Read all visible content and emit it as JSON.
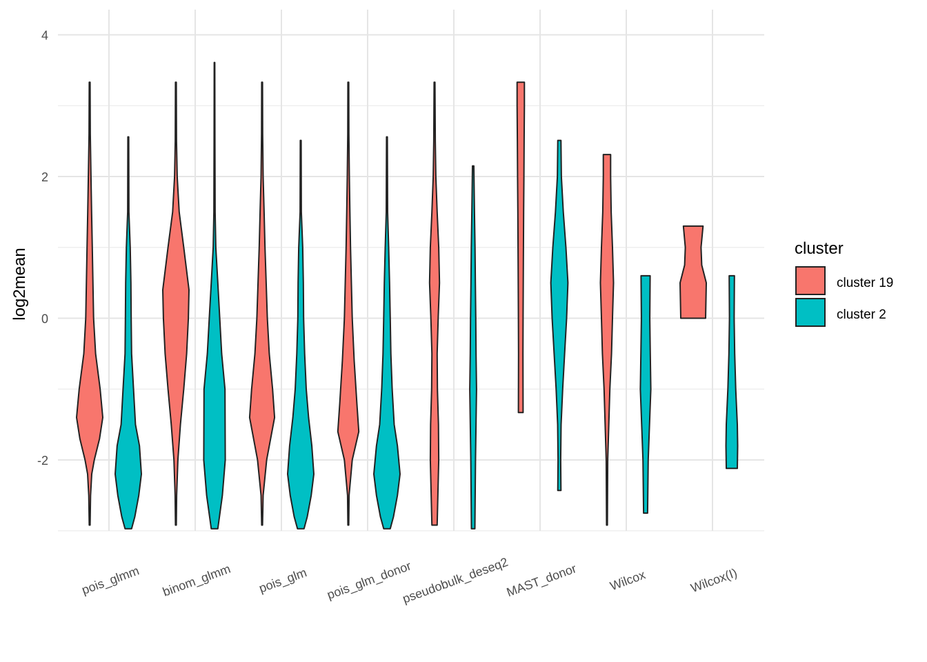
{
  "chart_data": {
    "type": "violin",
    "title": "",
    "xlabel": "",
    "ylabel": "log2mean",
    "ylim": [
      -3.0,
      4.3
    ],
    "y_ticks": [
      -2,
      0,
      2,
      4
    ],
    "y_tick_labels": [
      "-2",
      "0",
      "2",
      "4"
    ],
    "categories": [
      "pois_glmm",
      "binom_glmm",
      "pois_glm",
      "pois_glm_donor",
      "pseudobulk_deseq2",
      "MAST_donor",
      "Wilcox",
      "Wilcox(I)"
    ],
    "legend": {
      "title": "cluster",
      "position": "right",
      "entries": [
        {
          "label": "cluster 19",
          "color": "#F8766D"
        },
        {
          "label": "cluster 2",
          "color": "#00BFC4"
        }
      ]
    },
    "series": [
      {
        "name": "cluster 19",
        "color": "#F8766D",
        "violins": [
          {
            "category": "pois_glmm",
            "min": -2.92,
            "max": 3.33,
            "profile": [
              [
                -2.92,
                0.03
              ],
              [
                -2.5,
                0.07
              ],
              [
                -2.2,
                0.16
              ],
              [
                -2.0,
                0.35
              ],
              [
                -1.7,
                0.75
              ],
              [
                -1.4,
                1.0
              ],
              [
                -1.0,
                0.8
              ],
              [
                -0.5,
                0.45
              ],
              [
                0.0,
                0.3
              ],
              [
                1.0,
                0.2
              ],
              [
                1.5,
                0.15
              ],
              [
                2.0,
                0.1
              ],
              [
                2.6,
                0.05
              ],
              [
                3.33,
                0.03
              ]
            ]
          },
          {
            "category": "binom_glmm",
            "min": -2.92,
            "max": 3.33,
            "profile": [
              [
                -2.92,
                0.03
              ],
              [
                -2.5,
                0.06
              ],
              [
                -2.0,
                0.15
              ],
              [
                -1.5,
                0.35
              ],
              [
                -1.0,
                0.6
              ],
              [
                -0.5,
                0.82
              ],
              [
                0.0,
                0.95
              ],
              [
                0.4,
                1.0
              ],
              [
                1.0,
                0.6
              ],
              [
                1.5,
                0.25
              ],
              [
                2.0,
                0.1
              ],
              [
                2.5,
                0.05
              ],
              [
                3.33,
                0.03
              ]
            ]
          },
          {
            "category": "pois_glm",
            "min": -2.92,
            "max": 3.33,
            "profile": [
              [
                -2.92,
                0.03
              ],
              [
                -2.5,
                0.08
              ],
              [
                -2.0,
                0.35
              ],
              [
                -1.4,
                0.95
              ],
              [
                -1.0,
                0.8
              ],
              [
                -0.5,
                0.55
              ],
              [
                0.0,
                0.4
              ],
              [
                1.0,
                0.22
              ],
              [
                1.5,
                0.15
              ],
              [
                2.0,
                0.08
              ],
              [
                2.6,
                0.04
              ],
              [
                3.33,
                0.03
              ]
            ]
          },
          {
            "category": "pois_glm_donor",
            "min": -2.92,
            "max": 3.33,
            "profile": [
              [
                -2.92,
                0.03
              ],
              [
                -2.5,
                0.06
              ],
              [
                -2.0,
                0.3
              ],
              [
                -1.6,
                0.8
              ],
              [
                -1.2,
                0.65
              ],
              [
                -0.6,
                0.45
              ],
              [
                0.0,
                0.3
              ],
              [
                1.0,
                0.17
              ],
              [
                1.5,
                0.12
              ],
              [
                2.0,
                0.08
              ],
              [
                2.6,
                0.04
              ],
              [
                3.33,
                0.03
              ]
            ]
          },
          {
            "category": "pseudobulk_deseq2",
            "min": -2.92,
            "max": 3.33,
            "profile": [
              [
                -2.92,
                0.2
              ],
              [
                -2.0,
                0.32
              ],
              [
                -1.5,
                0.3
              ],
              [
                -1.0,
                0.22
              ],
              [
                -0.5,
                0.2
              ],
              [
                0.0,
                0.28
              ],
              [
                0.5,
                0.38
              ],
              [
                1.0,
                0.32
              ],
              [
                1.5,
                0.2
              ],
              [
                2.0,
                0.1
              ],
              [
                2.5,
                0.06
              ],
              [
                3.33,
                0.03
              ]
            ]
          },
          {
            "category": "MAST_donor",
            "min": -1.33,
            "max": 3.33,
            "profile": [
              [
                -1.33,
                0.18
              ],
              [
                -0.5,
                0.17
              ],
              [
                0.0,
                0.18
              ],
              [
                0.8,
                0.2
              ],
              [
                1.5,
                0.22
              ],
              [
                2.0,
                0.24
              ],
              [
                2.5,
                0.26
              ],
              [
                3.0,
                0.28
              ],
              [
                3.33,
                0.28
              ]
            ]
          },
          {
            "category": "Wilcox",
            "min": -2.92,
            "max": 2.31,
            "profile": [
              [
                -2.92,
                0.03
              ],
              [
                -2.0,
                0.06
              ],
              [
                -1.0,
                0.22
              ],
              [
                -0.5,
                0.35
              ],
              [
                0.0,
                0.42
              ],
              [
                0.5,
                0.5
              ],
              [
                1.0,
                0.42
              ],
              [
                1.5,
                0.32
              ],
              [
                2.0,
                0.28
              ],
              [
                2.31,
                0.28
              ]
            ]
          },
          {
            "category": "Wilcox(I)",
            "min": 0.0,
            "max": 1.3,
            "profile": [
              [
                0.0,
                0.95
              ],
              [
                0.5,
                1.0
              ],
              [
                0.75,
                0.65
              ],
              [
                1.0,
                0.6
              ],
              [
                1.3,
                0.75
              ]
            ]
          }
        ]
      },
      {
        "name": "cluster 2",
        "color": "#00BFC4",
        "violins": [
          {
            "category": "pois_glmm",
            "min": -2.97,
            "max": 2.56,
            "profile": [
              [
                -2.97,
                0.25
              ],
              [
                -2.8,
                0.5
              ],
              [
                -2.5,
                0.8
              ],
              [
                -2.2,
                1.0
              ],
              [
                -1.8,
                0.85
              ],
              [
                -1.5,
                0.55
              ],
              [
                -1.0,
                0.4
              ],
              [
                -0.5,
                0.25
              ],
              [
                0.0,
                0.22
              ],
              [
                0.5,
                0.2
              ],
              [
                1.0,
                0.15
              ],
              [
                1.5,
                0.05
              ],
              [
                2.56,
                0.03
              ]
            ]
          },
          {
            "category": "binom_glmm",
            "min": -2.97,
            "max": 3.61,
            "profile": [
              [
                -2.97,
                0.25
              ],
              [
                -2.5,
                0.6
              ],
              [
                -2.0,
                0.82
              ],
              [
                -1.0,
                0.8
              ],
              [
                -0.5,
                0.55
              ],
              [
                0.0,
                0.4
              ],
              [
                0.5,
                0.25
              ],
              [
                1.0,
                0.1
              ],
              [
                1.5,
                0.05
              ],
              [
                2.5,
                0.03
              ],
              [
                3.61,
                0.02
              ]
            ]
          },
          {
            "category": "pois_glm",
            "min": -2.97,
            "max": 2.51,
            "profile": [
              [
                -2.97,
                0.25
              ],
              [
                -2.8,
                0.5
              ],
              [
                -2.5,
                0.8
              ],
              [
                -2.2,
                1.0
              ],
              [
                -1.8,
                0.85
              ],
              [
                -1.4,
                0.6
              ],
              [
                -1.0,
                0.42
              ],
              [
                -0.5,
                0.3
              ],
              [
                0.0,
                0.22
              ],
              [
                0.5,
                0.2
              ],
              [
                1.0,
                0.15
              ],
              [
                1.5,
                0.05
              ],
              [
                2.51,
                0.03
              ]
            ]
          },
          {
            "category": "pois_glm_donor",
            "min": -2.97,
            "max": 2.56,
            "profile": [
              [
                -2.97,
                0.25
              ],
              [
                -2.8,
                0.5
              ],
              [
                -2.5,
                0.8
              ],
              [
                -2.2,
                1.0
              ],
              [
                -1.8,
                0.8
              ],
              [
                -1.5,
                0.55
              ],
              [
                -1.0,
                0.4
              ],
              [
                -0.5,
                0.3
              ],
              [
                0.0,
                0.25
              ],
              [
                0.5,
                0.2
              ],
              [
                1.0,
                0.13
              ],
              [
                1.5,
                0.05
              ],
              [
                2.56,
                0.03
              ]
            ]
          },
          {
            "category": "pseudobulk_deseq2",
            "min": -2.97,
            "max": 2.15,
            "profile": [
              [
                -2.97,
                0.13
              ],
              [
                -2.0,
                0.18
              ],
              [
                -1.0,
                0.26
              ],
              [
                -0.5,
                0.22
              ],
              [
                0.0,
                0.2
              ],
              [
                0.5,
                0.17
              ],
              [
                1.0,
                0.14
              ],
              [
                1.5,
                0.1
              ],
              [
                2.15,
                0.05
              ]
            ]
          },
          {
            "category": "MAST_donor",
            "min": -2.43,
            "max": 2.51,
            "profile": [
              [
                -2.43,
                0.12
              ],
              [
                -2.0,
                0.1
              ],
              [
                -1.5,
                0.13
              ],
              [
                -1.0,
                0.25
              ],
              [
                -0.5,
                0.4
              ],
              [
                0.0,
                0.55
              ],
              [
                0.5,
                0.65
              ],
              [
                1.0,
                0.5
              ],
              [
                1.5,
                0.3
              ],
              [
                2.0,
                0.15
              ],
              [
                2.51,
                0.12
              ]
            ]
          },
          {
            "category": "Wilcox",
            "min": -2.75,
            "max": 0.6,
            "profile": [
              [
                -2.75,
                0.15
              ],
              [
                -2.0,
                0.2
              ],
              [
                -1.5,
                0.3
              ],
              [
                -1.0,
                0.4
              ],
              [
                -0.5,
                0.36
              ],
              [
                0.0,
                0.32
              ],
              [
                0.6,
                0.35
              ]
            ]
          },
          {
            "category": "Wilcox(I)",
            "min": -2.12,
            "max": 0.6,
            "profile": [
              [
                -2.12,
                0.42
              ],
              [
                -1.8,
                0.45
              ],
              [
                -1.5,
                0.42
              ],
              [
                -1.0,
                0.3
              ],
              [
                -0.5,
                0.22
              ],
              [
                0.0,
                0.18
              ],
              [
                0.6,
                0.2
              ]
            ]
          }
        ]
      }
    ]
  }
}
